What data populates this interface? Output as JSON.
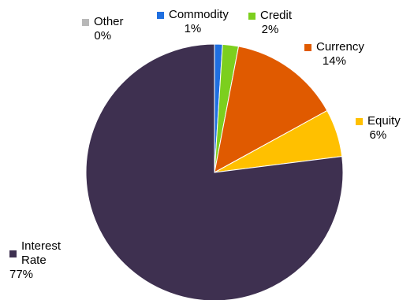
{
  "chart_data": {
    "type": "pie",
    "slices": [
      {
        "name": "Commodity",
        "value": 1,
        "label": "1%",
        "color": "#1f6fe0"
      },
      {
        "name": "Credit",
        "value": 2,
        "label": "2%",
        "color": "#7ccf1e"
      },
      {
        "name": "Currency",
        "value": 14,
        "label": "14%",
        "color": "#e05a00"
      },
      {
        "name": "Equity",
        "value": 6,
        "label": "6%",
        "color": "#ffc000"
      },
      {
        "name": "Interest Rate",
        "value": 77,
        "label": "77%",
        "color": "#3e3050"
      },
      {
        "name": "Other",
        "value": 0,
        "label": "0%",
        "color": "#b8b8b8"
      }
    ],
    "legend_placement": "labels-around-pie"
  }
}
